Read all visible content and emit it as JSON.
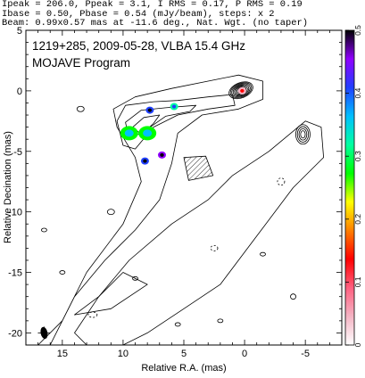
{
  "header": {
    "line1": "Ipeak = 206.0, Ppeak = 3.1, I RMS = 0.17, P RMS = 0.19",
    "line2": "Ibase = 0.50, Pbase = 0.54 (mJy/beam), steps: x 2",
    "line3": "Beam: 0.99x0.57 mas at -11.6 deg., Nat. Wgt. (no taper)"
  },
  "chart_data": {
    "type": "contour",
    "title": "1219+285, 2009-05-28, VLBA 15.4 GHz",
    "subtitle": "MOJAVE Program",
    "xlabel": "Relative R.A. (mas)",
    "ylabel": "Relative Decination (mas)",
    "xlim": [
      18,
      -8
    ],
    "ylim": [
      -21,
      5
    ],
    "xticks": [
      15,
      10,
      5,
      0,
      -5
    ],
    "yticks": [
      5,
      0,
      -5,
      -10,
      -15,
      -20
    ],
    "colorbar": {
      "min": 0,
      "max": 0.5,
      "ticks": [
        0,
        0.1,
        0.2,
        0.3,
        0.4,
        0.5
      ],
      "colors": [
        "#ffffff",
        "#f4b4c4",
        "#ff6080",
        "#ff0000",
        "#ff8000",
        "#ffff00",
        "#00ff00",
        "#00ffa0",
        "#00c0ff",
        "#2040ff",
        "#9000ff",
        "#000000"
      ]
    },
    "core": {
      "x": 0,
      "y": 0
    },
    "jet_ridge": [
      [
        0,
        0
      ],
      [
        2.5,
        -1.2
      ],
      [
        5.5,
        -1.6
      ],
      [
        8,
        -2.5
      ],
      [
        9.5,
        -3.5
      ],
      [
        12,
        -6
      ],
      [
        14,
        -9
      ],
      [
        16,
        -13
      ]
    ],
    "polarized_components": [
      {
        "x": 9.5,
        "y": -3.5,
        "value": 0.25
      },
      {
        "x": 8,
        "y": -3.5,
        "value": 0.27
      },
      {
        "x": 7.8,
        "y": -1.6,
        "value": 0.42
      },
      {
        "x": 5.8,
        "y": -1.3,
        "value": 0.3
      },
      {
        "x": 6.8,
        "y": -5.3,
        "value": 0.45
      },
      {
        "x": 8.2,
        "y": -5.8,
        "value": 0.42
      },
      {
        "x": 0.2,
        "y": 0,
        "value": 0.05
      }
    ],
    "beam": {
      "major_mas": 0.99,
      "minor_mas": 0.57,
      "pa_deg": -11.6
    }
  }
}
